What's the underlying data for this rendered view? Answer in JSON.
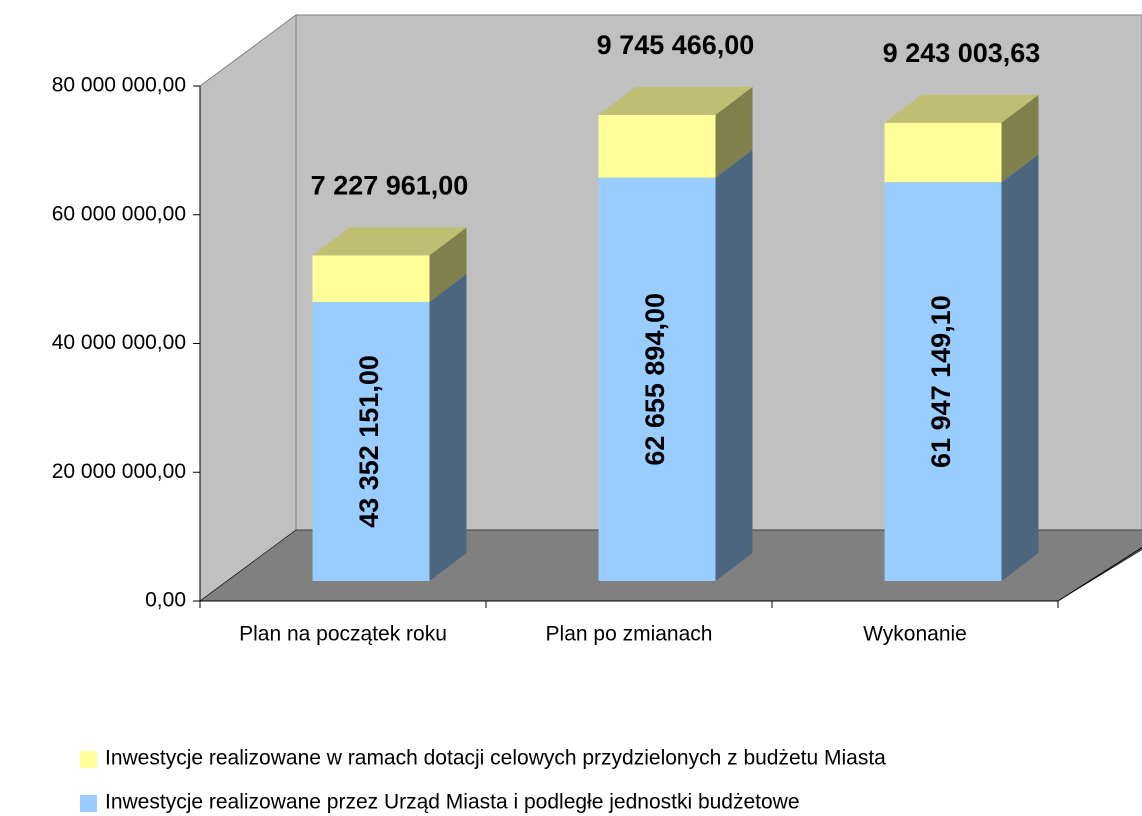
{
  "chart_data": {
    "type": "bar3d_stacked",
    "categories": [
      "Plan na początek roku",
      "Plan po zmianach",
      "Wykonanie"
    ],
    "series": [
      {
        "name": "Inwestycje realizowane przez Urząd Miasta i podległe jednostki budżetowe",
        "color": "#99ccff",
        "values": [
          43352151,
          62655894,
          61947149.1
        ],
        "value_labels": [
          "43 352 151,00",
          "62 655 894,00",
          "61 947 149,10"
        ]
      },
      {
        "name": "Inwestycje realizowane w ramach dotacji celowych przydzielonych z budżetu Miasta",
        "color": "#ffff99",
        "values": [
          7227961,
          9745466,
          9243003.63
        ],
        "value_labels": [
          "7 227 961,00",
          "9 745 466,00",
          "9 243 003,63"
        ]
      }
    ],
    "ylim": [
      0,
      80000000
    ],
    "yticks": [
      {
        "value": 0,
        "label": "0,00"
      },
      {
        "value": 20000000,
        "label": "20 000 000,00"
      },
      {
        "value": 40000000,
        "label": "40 000 000,00"
      },
      {
        "value": 60000000,
        "label": "60 000 000,00"
      },
      {
        "value": 80000000,
        "label": "80 000 000,00"
      }
    ],
    "wall_color": "#c0c0c0",
    "floor_color": "#808080"
  }
}
